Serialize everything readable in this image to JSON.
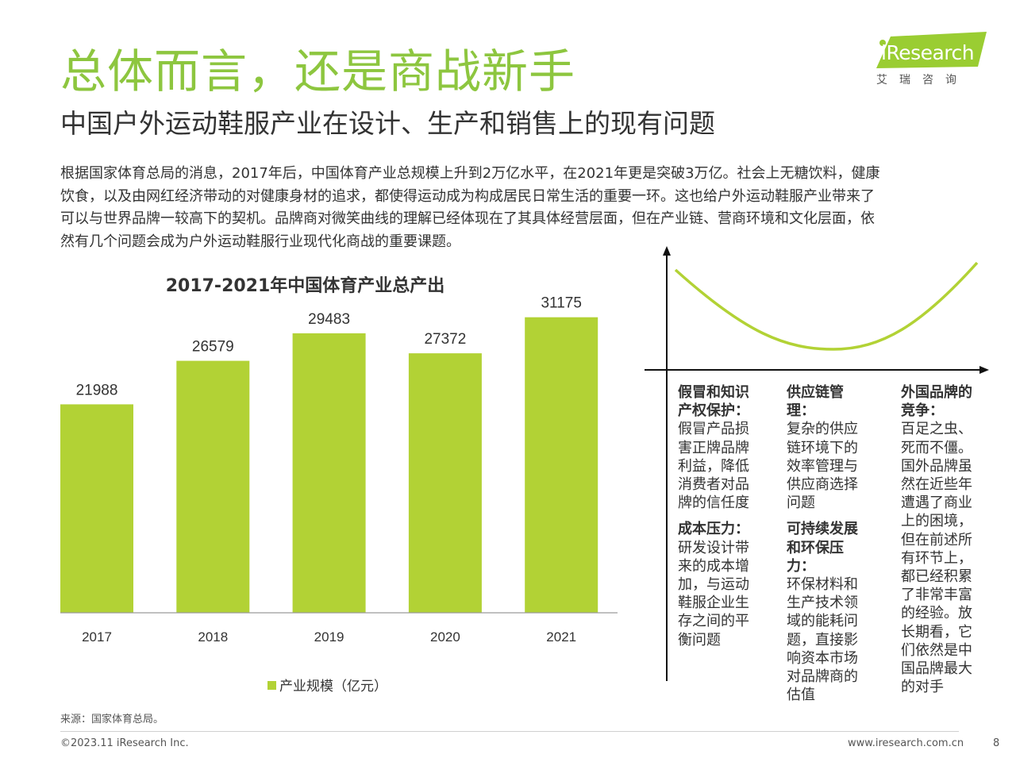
{
  "header": {
    "title": "总体而言，还是商战新手",
    "subtitle": "中国户外运动鞋服产业在设计、生产和销售上的现有问题"
  },
  "logo": {
    "wordmark": "iResearch",
    "cn": "艾瑞咨询"
  },
  "intro": {
    "lines": [
      "根据国家体育总局的消息，2017年后，中国体育产业总规模上升到2万亿水平，在2021年更是突破3万亿。社会上无糖饮料，健康",
      "饮食，以及由网红经济带动的对健康身材的追求，都使得运动成为构成居民日常生活的重要一环。这也给户外运动鞋服产业带来了",
      "可以与世界品牌一较高下的契机。品牌商对微笑曲线的理解已经体现在了其具体经营层面，但在产业链、营商环境和文化层面，依",
      "然有几个问题会成为户外运动鞋服行业现代化商战的重要课题。"
    ]
  },
  "chart_data": {
    "type": "bar",
    "title": "2017-2021年中国体育产业总产出",
    "categories": [
      "2017",
      "2018",
      "2019",
      "2020",
      "2021"
    ],
    "series": [
      {
        "name": "产业规模（亿元）",
        "values": [
          21988,
          26579,
          29483,
          27372,
          31175
        ]
      }
    ],
    "ylim": [
      0,
      35000
    ],
    "grid": false,
    "legend": "bottom",
    "color": "#b2d235"
  },
  "curve_panel": {
    "curve_color": "#b2d235",
    "columns": [
      {
        "blocks": [
          {
            "head": [
              "假冒和知识",
              "产权保护："
            ],
            "body": [
              "假冒产品损",
              "害正牌品牌",
              "利益，降低",
              "消费者对品",
              "牌的信任度"
            ]
          },
          {
            "head": [
              "成本压力："
            ],
            "body": [
              "研发设计带",
              "来的成本增",
              "加，与运动",
              "鞋服企业生",
              "存之间的平",
              "衡问题"
            ]
          }
        ]
      },
      {
        "blocks": [
          {
            "head": [
              "供应链管",
              "理："
            ],
            "body": [
              "复杂的供应",
              "链环境下的",
              "效率管理与",
              "供应商选择",
              "问题"
            ]
          },
          {
            "head": [
              "可持续发展",
              "和环保压",
              "力："
            ],
            "body": [
              "环保材料和",
              "生产技术领",
              "域的能耗问",
              "题，直接影",
              "响资本市场",
              "对品牌商的",
              "估值"
            ]
          }
        ]
      },
      {
        "blocks": [
          {
            "head": [
              "外国品牌的",
              "竞争："
            ],
            "body": [
              "百足之虫、",
              "死而不僵。",
              "国外品牌虽",
              "然在近些年",
              "遭遇了商业",
              "上的困境，",
              "但在前述所",
              "有环节上，",
              "都已经积累",
              "了非常丰富",
              "的经验。放",
              "长期看，它",
              "们依然是中",
              "国品牌最大",
              "的对手"
            ]
          }
        ]
      }
    ]
  },
  "footer": {
    "source": "来源：国家体育总局。",
    "copyright": "©2023.11 iResearch Inc.",
    "site": "www.iresearch.com.cn",
    "page": "8"
  }
}
